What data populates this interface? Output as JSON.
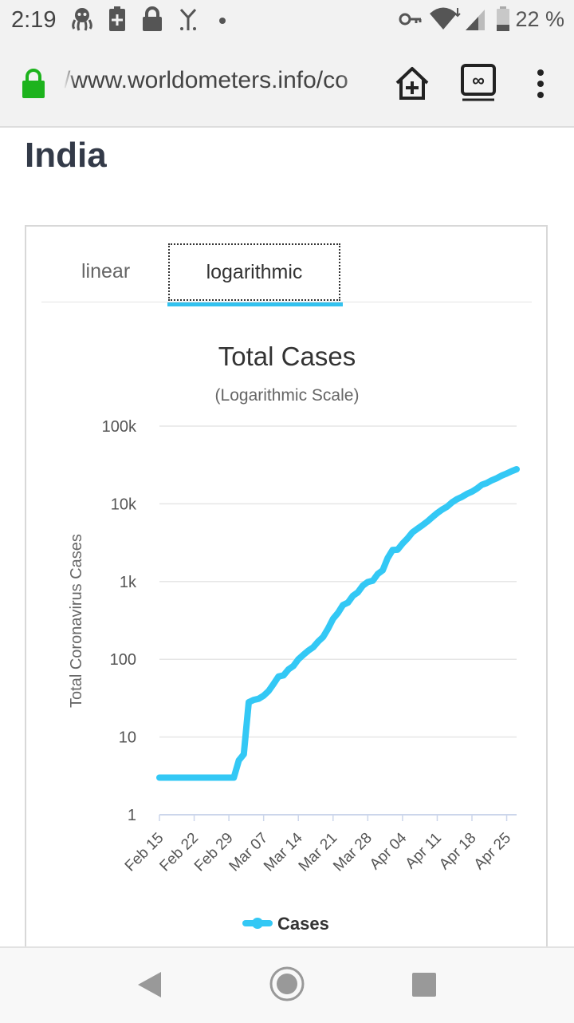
{
  "status_bar": {
    "time": "2:19",
    "battery_text": "22 %",
    "icons": [
      "octopus-icon",
      "battery-saver-icon",
      "lock-icon",
      "antenna-icon",
      "dot-icon",
      "key-icon",
      "wifi-icon",
      "signal-icon",
      "battery-icon"
    ]
  },
  "browser": {
    "url": "/www.worldometers.info/co",
    "icons": [
      "padlock-icon",
      "home-add-icon",
      "tab-switcher-icon",
      "overflow-menu-icon"
    ],
    "colors": {
      "padlock": "#1db31d"
    }
  },
  "page": {
    "heading": "India",
    "tabs": [
      {
        "label": "linear",
        "active": false
      },
      {
        "label": "logarithmic",
        "active": true
      }
    ]
  },
  "chart_data": {
    "type": "line",
    "title": "Total Cases",
    "subtitle": "(Logarithmic Scale)",
    "ylabel": "Total Coronavirus Cases",
    "xlabel": "",
    "y_scale": "log",
    "ylim": [
      1,
      100000
    ],
    "y_ticks": [
      1,
      10,
      100,
      1000,
      10000,
      100000
    ],
    "y_tick_labels": [
      "1",
      "10",
      "100",
      "1k",
      "10k",
      "100k"
    ],
    "x_tick_labels": [
      "Feb 15",
      "Feb 22",
      "Feb 29",
      "Mar 07",
      "Mar 14",
      "Mar 21",
      "Mar 28",
      "Apr 04",
      "Apr 11",
      "Apr 18",
      "Apr 25"
    ],
    "grid": true,
    "legend_position": "bottom",
    "color": "#33c8f5",
    "series": [
      {
        "name": "Cases",
        "points": [
          [
            "Feb 15",
            3
          ],
          [
            "Feb 20",
            3
          ],
          [
            "Feb 25",
            3
          ],
          [
            "Mar 01",
            3
          ],
          [
            "Mar 02",
            5
          ],
          [
            "Mar 03",
            6
          ],
          [
            "Mar 04",
            28
          ],
          [
            "Mar 05",
            30
          ],
          [
            "Mar 06",
            31
          ],
          [
            "Mar 07",
            34
          ],
          [
            "Mar 08",
            39
          ],
          [
            "Mar 09",
            48
          ],
          [
            "Mar 10",
            60
          ],
          [
            "Mar 11",
            62
          ],
          [
            "Mar 12",
            74
          ],
          [
            "Mar 13",
            82
          ],
          [
            "Mar 14",
            100
          ],
          [
            "Mar 15",
            114
          ],
          [
            "Mar 16",
            129
          ],
          [
            "Mar 17",
            143
          ],
          [
            "Mar 18",
            169
          ],
          [
            "Mar 19",
            194
          ],
          [
            "Mar 20",
            249
          ],
          [
            "Mar 21",
            332
          ],
          [
            "Mar 22",
            396
          ],
          [
            "Mar 23",
            499
          ],
          [
            "Mar 24",
            536
          ],
          [
            "Mar 25",
            657
          ],
          [
            "Mar 26",
            727
          ],
          [
            "Mar 27",
            887
          ],
          [
            "Mar 28",
            987
          ],
          [
            "Mar 29",
            1024
          ],
          [
            "Mar 30",
            1251
          ],
          [
            "Mar 31",
            1397
          ],
          [
            "Apr 01",
            1998
          ],
          [
            "Apr 02",
            2543
          ],
          [
            "Apr 03",
            2567
          ],
          [
            "Apr 04",
            3082
          ],
          [
            "Apr 05",
            3588
          ],
          [
            "Apr 06",
            4289
          ],
          [
            "Apr 07",
            4778
          ],
          [
            "Apr 08",
            5311
          ],
          [
            "Apr 09",
            5916
          ],
          [
            "Apr 10",
            6725
          ],
          [
            "Apr 11",
            7598
          ],
          [
            "Apr 12",
            8446
          ],
          [
            "Apr 13",
            9205
          ],
          [
            "Apr 14",
            10453
          ],
          [
            "Apr 15",
            11487
          ],
          [
            "Apr 16",
            12322
          ],
          [
            "Apr 17",
            13430
          ],
          [
            "Apr 18",
            14352
          ],
          [
            "Apr 19",
            15722
          ],
          [
            "Apr 20",
            17615
          ],
          [
            "Apr 21",
            18539
          ],
          [
            "Apr 22",
            20080
          ],
          [
            "Apr 23",
            21370
          ],
          [
            "Apr 24",
            23077
          ],
          [
            "Apr 25",
            24530
          ],
          [
            "Apr 26",
            26283
          ],
          [
            "Apr 27",
            27890
          ]
        ]
      }
    ]
  },
  "nav_bar": {
    "icons": [
      "back-icon",
      "home-icon",
      "recents-icon"
    ]
  }
}
